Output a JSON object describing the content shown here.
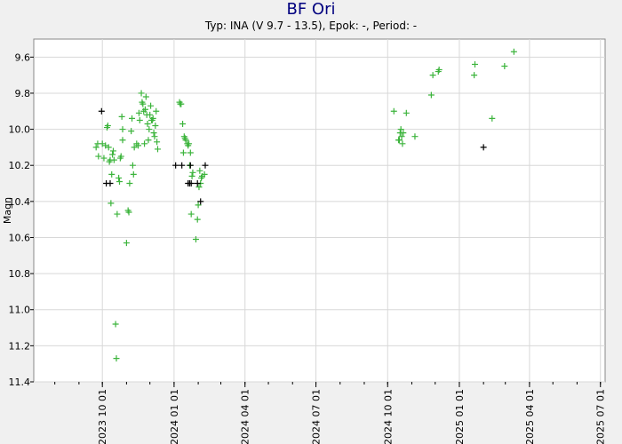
{
  "title": "BF Ori",
  "subtitle": "Typ: INA (V 9.7 - 13.5), Epok: -, Period: -",
  "colors": {
    "visual": "#3cb43c",
    "other": "#000000",
    "grid": "#d8d8d8",
    "plot_bg": "#ffffff",
    "title": "#00007f"
  },
  "chart_data": {
    "type": "scatter",
    "title": "BF Ori",
    "ylabel": "Magn",
    "xlabel": "",
    "y_inverted": true,
    "ylim": [
      11.4,
      9.5
    ],
    "xlim": [
      "2023-07-05",
      "2025-07-07"
    ],
    "y_ticks": [
      "9.6",
      "9.8",
      "10.0",
      "10.2",
      "10.4",
      "10.6",
      "10.8",
      "11.0",
      "11.2",
      "11.4"
    ],
    "x_ticks": [
      "2023 10 01",
      "2024 01 01",
      "2024 04 01",
      "2024 07 01",
      "2024 10 01",
      "2025 01 01",
      "2025 04 01",
      "2025 07 01"
    ],
    "grid": true,
    "series": [
      {
        "color": "#3cb43c",
        "marker": "+",
        "points": [
          [
            "2023-09-23",
            10.1
          ],
          [
            "2023-09-25",
            10.08
          ],
          [
            "2023-09-26",
            10.15
          ],
          [
            "2023-10-01",
            10.08
          ],
          [
            "2023-10-03",
            10.16
          ],
          [
            "2023-10-05",
            10.09
          ],
          [
            "2023-10-07",
            9.99
          ],
          [
            "2023-10-08",
            9.98
          ],
          [
            "2023-10-09",
            10.1
          ],
          [
            "2023-10-10",
            10.18
          ],
          [
            "2023-10-11",
            10.17
          ],
          [
            "2023-10-12",
            10.41
          ],
          [
            "2023-10-13",
            10.25
          ],
          [
            "2023-10-14",
            10.14
          ],
          [
            "2023-10-15",
            10.12
          ],
          [
            "2023-10-16",
            10.17
          ],
          [
            "2023-10-18",
            11.08
          ],
          [
            "2023-10-19",
            11.27
          ],
          [
            "2023-10-20",
            10.47
          ],
          [
            "2023-10-22",
            10.27
          ],
          [
            "2023-10-23",
            10.29
          ],
          [
            "2023-10-24",
            10.16
          ],
          [
            "2023-10-25",
            10.15
          ],
          [
            "2023-10-27",
            10.06
          ],
          [
            "2023-10-26",
            9.93
          ],
          [
            "2023-10-27",
            10.0
          ],
          [
            "2023-11-01",
            10.63
          ],
          [
            "2023-11-03",
            10.45
          ],
          [
            "2023-11-04",
            10.46
          ],
          [
            "2023-11-05",
            10.3
          ],
          [
            "2023-11-07",
            10.01
          ],
          [
            "2023-11-08",
            9.94
          ],
          [
            "2023-11-09",
            10.2
          ],
          [
            "2023-11-10",
            10.25
          ],
          [
            "2023-11-11",
            10.1
          ],
          [
            "2023-11-14",
            10.08
          ],
          [
            "2023-11-16",
            10.09
          ],
          [
            "2023-11-17",
            9.91
          ],
          [
            "2023-11-18",
            9.95
          ],
          [
            "2023-11-20",
            9.8
          ],
          [
            "2023-11-21",
            9.85
          ],
          [
            "2023-11-22",
            9.86
          ],
          [
            "2023-11-23",
            9.9
          ],
          [
            "2023-11-24",
            10.08
          ],
          [
            "2023-11-25",
            9.89
          ],
          [
            "2023-11-26",
            9.82
          ],
          [
            "2023-11-27",
            9.92
          ],
          [
            "2023-11-28",
            9.97
          ],
          [
            "2023-11-29",
            10.06
          ],
          [
            "2023-11-30",
            10.0
          ],
          [
            "2023-12-01",
            9.92
          ],
          [
            "2023-12-02",
            9.87
          ],
          [
            "2023-12-03",
            9.95
          ],
          [
            "2023-12-04",
            9.95
          ],
          [
            "2023-12-05",
            9.94
          ],
          [
            "2023-12-06",
            10.02
          ],
          [
            "2023-12-07",
            10.04
          ],
          [
            "2023-12-08",
            9.98
          ],
          [
            "2023-12-09",
            9.9
          ],
          [
            "2023-12-10",
            10.07
          ],
          [
            "2023-12-11",
            10.11
          ],
          [
            "2024-01-08",
            9.85
          ],
          [
            "2024-01-09",
            9.86
          ],
          [
            "2024-01-10",
            9.86
          ],
          [
            "2024-01-12",
            9.97
          ],
          [
            "2024-01-13",
            10.13
          ],
          [
            "2024-01-14",
            10.04
          ],
          [
            "2024-01-15",
            10.05
          ],
          [
            "2024-01-16",
            10.06
          ],
          [
            "2024-01-18",
            10.08
          ],
          [
            "2024-01-19",
            10.09
          ],
          [
            "2024-01-20",
            10.08
          ],
          [
            "2024-01-21",
            10.2
          ],
          [
            "2024-01-22",
            10.13
          ],
          [
            "2024-01-23",
            10.47
          ],
          [
            "2024-01-24",
            10.26
          ],
          [
            "2024-01-25",
            10.24
          ],
          [
            "2024-01-29",
            10.61
          ],
          [
            "2024-01-31",
            10.5
          ],
          [
            "2024-02-01",
            10.42
          ],
          [
            "2024-02-02",
            10.32
          ],
          [
            "2024-02-03",
            10.23
          ],
          [
            "2024-02-04",
            10.3
          ],
          [
            "2024-02-05",
            10.27
          ],
          [
            "2024-02-06",
            10.26
          ],
          [
            "2024-02-09",
            10.25
          ],
          [
            "2024-10-09",
            9.9
          ],
          [
            "2024-10-15",
            10.06
          ],
          [
            "2024-10-16",
            10.06
          ],
          [
            "2024-10-17",
            10.02
          ],
          [
            "2024-10-18",
            10.0
          ],
          [
            "2024-10-19",
            10.04
          ],
          [
            "2024-10-20",
            10.08
          ],
          [
            "2024-10-21",
            10.02
          ],
          [
            "2024-10-25",
            9.91
          ],
          [
            "2024-11-05",
            10.04
          ],
          [
            "2024-11-26",
            9.81
          ],
          [
            "2024-11-28",
            9.7
          ],
          [
            "2024-12-05",
            9.68
          ],
          [
            "2024-12-06",
            9.67
          ],
          [
            "2025-01-20",
            9.7
          ],
          [
            "2025-01-21",
            9.64
          ],
          [
            "2025-02-12",
            9.94
          ],
          [
            "2025-02-28",
            9.65
          ],
          [
            "2025-03-12",
            9.57
          ]
        ]
      },
      {
        "color": "#000000",
        "marker": "+",
        "points": [
          [
            "2023-09-30",
            9.9
          ],
          [
            "2023-10-06",
            10.3
          ],
          [
            "2023-10-11",
            10.3
          ],
          [
            "2024-01-03",
            10.2
          ],
          [
            "2024-01-11",
            10.2
          ],
          [
            "2024-01-19",
            10.3
          ],
          [
            "2024-01-21",
            10.3
          ],
          [
            "2024-01-23",
            10.3
          ],
          [
            "2024-01-31",
            10.3
          ],
          [
            "2024-02-04",
            10.4
          ],
          [
            "2024-02-10",
            10.2
          ],
          [
            "2024-01-22",
            10.2
          ],
          [
            "2025-02-01",
            10.1
          ]
        ]
      }
    ]
  }
}
